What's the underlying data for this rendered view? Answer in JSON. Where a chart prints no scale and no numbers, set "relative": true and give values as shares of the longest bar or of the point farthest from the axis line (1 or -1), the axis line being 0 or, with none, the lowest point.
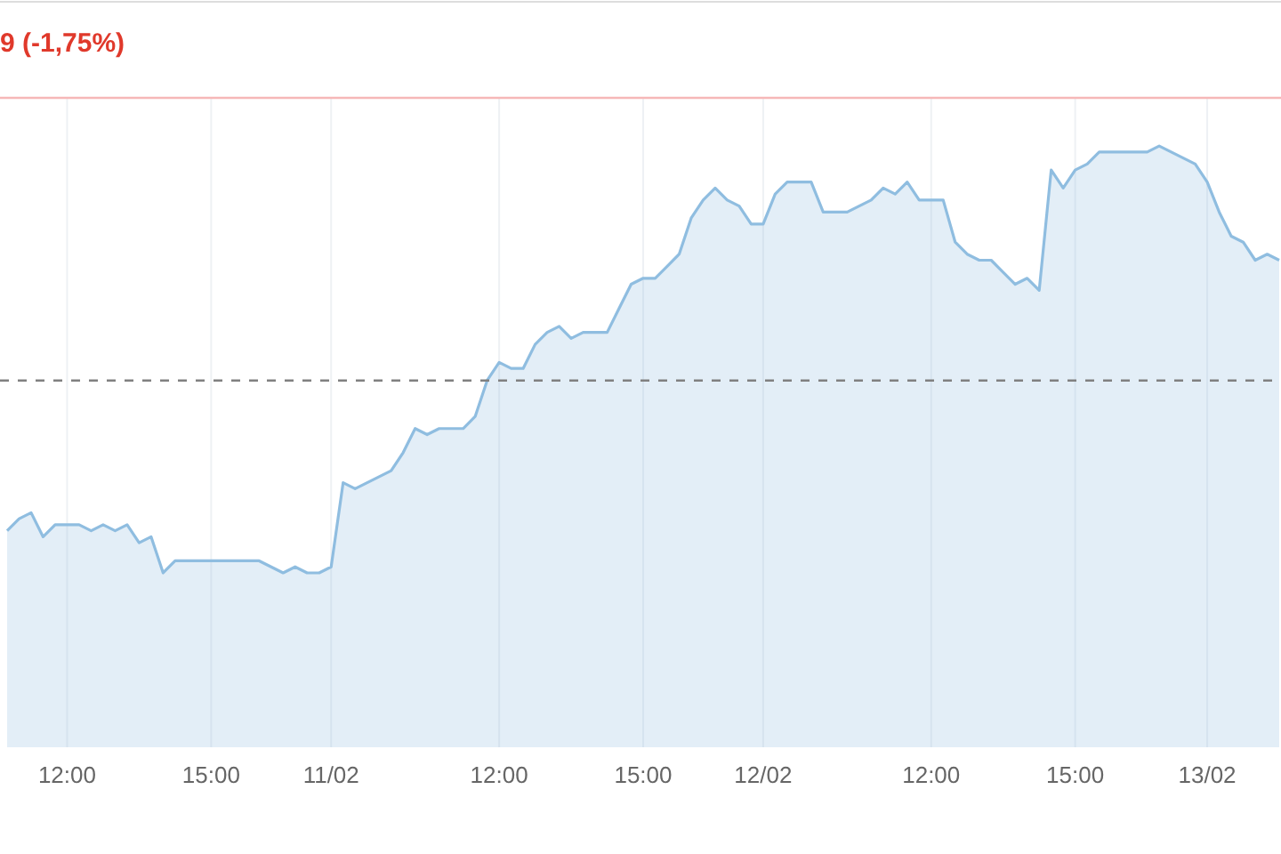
{
  "chart_data": {
    "type": "area",
    "title": "9 (-1,75%)",
    "relative": true,
    "grid": "x",
    "categories": [
      null,
      null,
      null,
      null,
      null,
      "12:00",
      null,
      null,
      null,
      null,
      null,
      null,
      null,
      null,
      null,
      null,
      null,
      "15:00",
      null,
      null,
      null,
      null,
      null,
      null,
      null,
      null,
      null,
      "11/02",
      null,
      null,
      null,
      null,
      null,
      null,
      null,
      null,
      null,
      null,
      null,
      null,
      null,
      "12:00",
      null,
      null,
      null,
      null,
      null,
      null,
      null,
      null,
      null,
      null,
      null,
      "15:00",
      null,
      null,
      null,
      null,
      null,
      null,
      null,
      null,
      null,
      "12/02",
      null,
      null,
      null,
      null,
      null,
      null,
      null,
      null,
      null,
      null,
      null,
      null,
      null,
      "12:00",
      null,
      null,
      null,
      null,
      null,
      null,
      null,
      null,
      null,
      null,
      null,
      "15:00",
      null,
      null,
      null,
      null,
      null,
      null,
      null,
      null,
      null,
      null,
      "13/02",
      null,
      null,
      null,
      null,
      null,
      null
    ],
    "series": [
      {
        "color": "#8fbde0",
        "values": [
          0.36,
          0.38,
          0.39,
          0.35,
          0.37,
          0.37,
          0.37,
          0.36,
          0.37,
          0.36,
          0.37,
          0.34,
          0.35,
          0.29,
          0.31,
          0.31,
          0.31,
          0.31,
          0.31,
          0.31,
          0.31,
          0.31,
          0.3,
          0.29,
          0.3,
          0.29,
          0.29,
          0.3,
          0.44,
          0.43,
          0.44,
          0.45,
          0.46,
          0.49,
          0.53,
          0.52,
          0.53,
          0.53,
          0.53,
          0.55,
          0.61,
          0.64,
          0.63,
          0.63,
          0.67,
          0.69,
          0.7,
          0.68,
          0.69,
          0.69,
          0.69,
          0.73,
          0.77,
          0.78,
          0.78,
          0.8,
          0.82,
          0.88,
          0.91,
          0.93,
          0.91,
          0.9,
          0.87,
          0.87,
          0.92,
          0.94,
          0.94,
          0.94,
          0.89,
          0.89,
          0.89,
          0.9,
          0.91,
          0.93,
          0.92,
          0.94,
          0.91,
          0.91,
          0.91,
          0.84,
          0.82,
          0.81,
          0.81,
          0.79,
          0.77,
          0.78,
          0.76,
          0.96,
          0.93,
          0.96,
          0.97,
          0.99,
          0.99,
          0.99,
          0.99,
          0.99,
          1,
          0.99,
          0.98,
          0.97,
          0.94,
          0.89,
          0.85,
          0.84,
          0.81,
          0.82,
          0.81
        ]
      }
    ],
    "ref_lines": [
      {
        "axis": "y",
        "value": 0.61,
        "color": "#808080",
        "line_style": "dashed"
      },
      {
        "axis": "y",
        "value": 1.08,
        "color": "#f6b8b8",
        "line_style": "solid"
      }
    ]
  }
}
